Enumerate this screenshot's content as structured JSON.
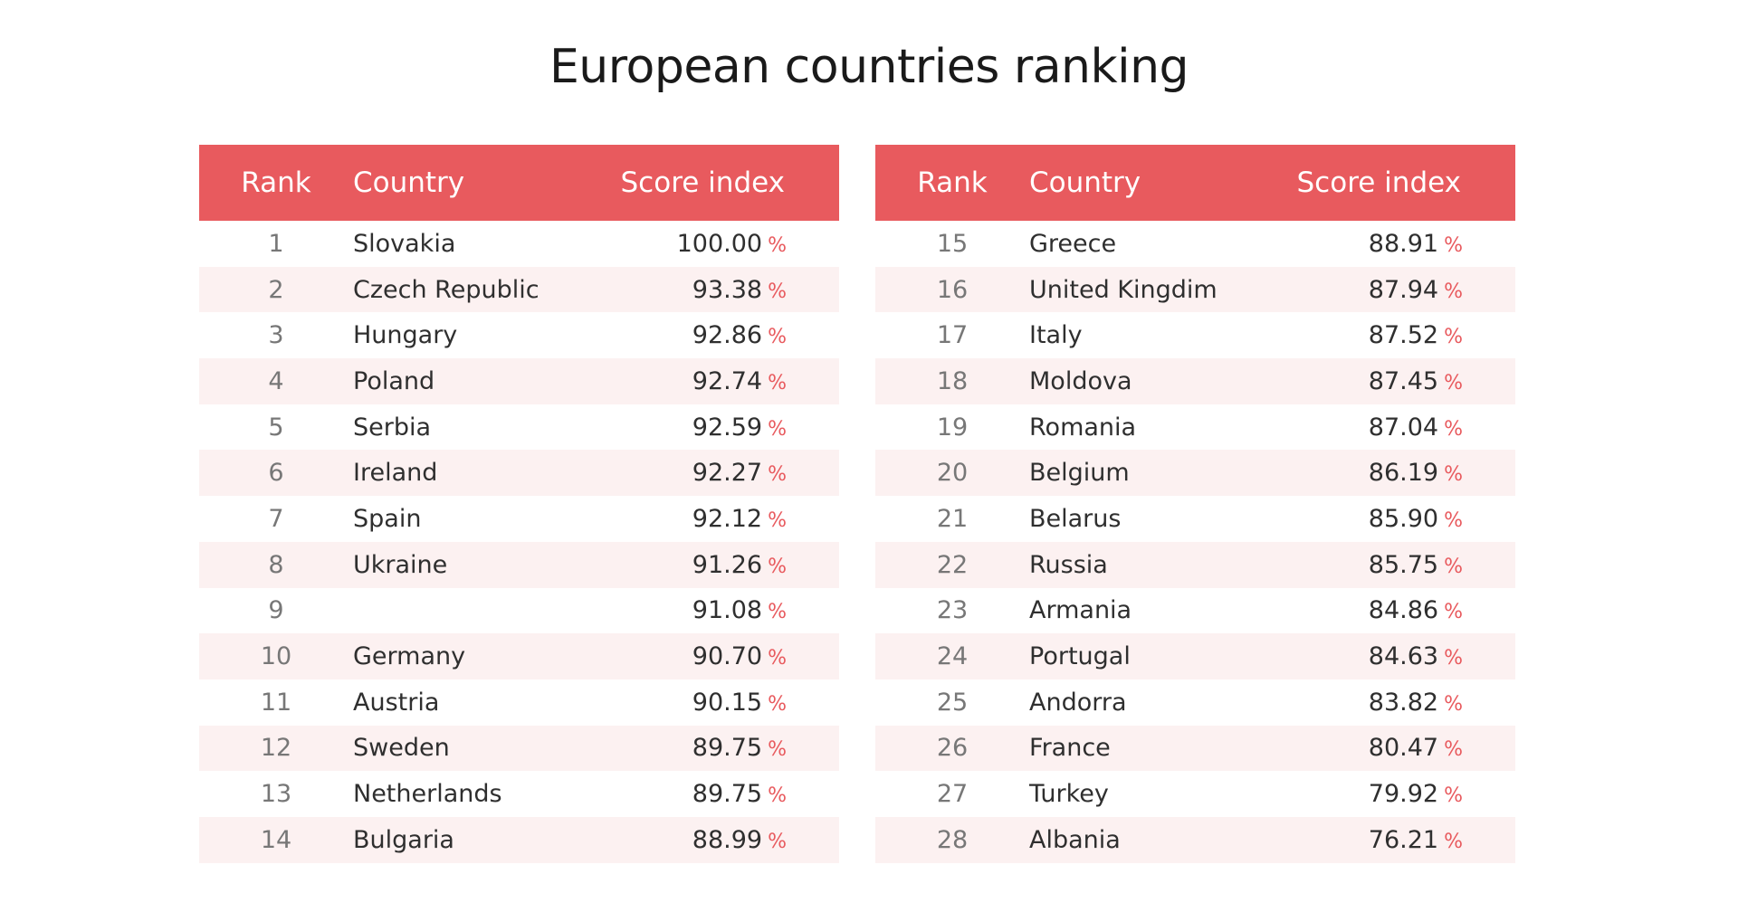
{
  "title": "European countries ranking",
  "colors": {
    "header_bg": "#e85a5e",
    "stripe_bg": "#fcf1f1",
    "percent_sign": "#e85a5e"
  },
  "chart_data": {
    "type": "table",
    "title": "European countries ranking",
    "columns": [
      "Rank",
      "Country",
      "Score index"
    ],
    "percent_symbol": "%",
    "tables": [
      {
        "header": {
          "rank": "Rank",
          "country": "Country",
          "score": "Score index"
        },
        "rows": [
          {
            "rank": "1",
            "country": "Slovakia",
            "score": "100.00"
          },
          {
            "rank": "2",
            "country": "Czech Republic",
            "score": "93.38"
          },
          {
            "rank": "3",
            "country": "Hungary",
            "score": "92.86"
          },
          {
            "rank": "4",
            "country": "Poland",
            "score": "92.74"
          },
          {
            "rank": "5",
            "country": "Serbia",
            "score": "92.59"
          },
          {
            "rank": "6",
            "country": "Ireland",
            "score": "92.27"
          },
          {
            "rank": "7",
            "country": "Spain",
            "score": "92.12"
          },
          {
            "rank": "8",
            "country": "Ukraine",
            "score": "91.26"
          },
          {
            "rank": "9",
            "country": "",
            "score": "91.08"
          },
          {
            "rank": "10",
            "country": "Germany",
            "score": "90.70"
          },
          {
            "rank": "11",
            "country": "Austria",
            "score": "90.15"
          },
          {
            "rank": "12",
            "country": "Sweden",
            "score": "89.75"
          },
          {
            "rank": "13",
            "country": "Netherlands",
            "score": "89.75"
          },
          {
            "rank": "14",
            "country": "Bulgaria",
            "score": "88.99"
          }
        ]
      },
      {
        "header": {
          "rank": "Rank",
          "country": "Country",
          "score": "Score index"
        },
        "rows": [
          {
            "rank": "15",
            "country": "Greece",
            "score": "88.91"
          },
          {
            "rank": "16",
            "country": "United Kingdim",
            "score": "87.94"
          },
          {
            "rank": "17",
            "country": "Italy",
            "score": "87.52"
          },
          {
            "rank": "18",
            "country": "Moldova",
            "score": "87.45"
          },
          {
            "rank": "19",
            "country": "Romania",
            "score": "87.04"
          },
          {
            "rank": "20",
            "country": "Belgium",
            "score": "86.19"
          },
          {
            "rank": "21",
            "country": "Belarus",
            "score": "85.90"
          },
          {
            "rank": "22",
            "country": "Russia",
            "score": "85.75"
          },
          {
            "rank": "23",
            "country": "Armania",
            "score": "84.86"
          },
          {
            "rank": "24",
            "country": "Portugal",
            "score": "84.63"
          },
          {
            "rank": "25",
            "country": "Andorra",
            "score": "83.82"
          },
          {
            "rank": "26",
            "country": "France",
            "score": "80.47"
          },
          {
            "rank": "27",
            "country": "Turkey",
            "score": "79.92"
          },
          {
            "rank": "28",
            "country": "Albania",
            "score": "76.21"
          }
        ]
      }
    ]
  }
}
